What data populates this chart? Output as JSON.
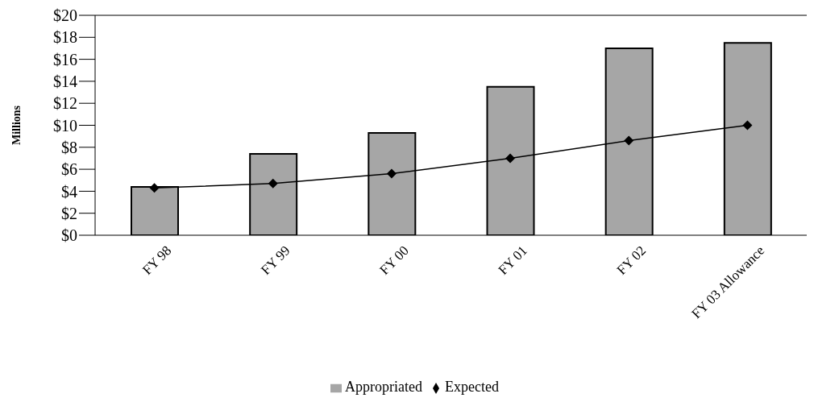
{
  "chart_data": {
    "type": "bar",
    "ylabel": "Millions",
    "categories": [
      "FY 98",
      "FY 99",
      "FY 00",
      "FY 01",
      "FY 02",
      "FY 03 Allowance"
    ],
    "series": [
      {
        "name": "Appropriated",
        "color": "#a6a6a6",
        "values": [
          4.4,
          7.4,
          9.3,
          13.5,
          17.0,
          17.5
        ]
      },
      {
        "name": "Expected",
        "type": "line",
        "color": "#000000",
        "marker": "diamond",
        "values": [
          4.3,
          4.7,
          5.6,
          7.0,
          8.6,
          10.0
        ]
      }
    ],
    "ylim": [
      0,
      20
    ],
    "yticks": [
      {
        "value": 0,
        "label": "$0"
      },
      {
        "value": 2,
        "label": "$2"
      },
      {
        "value": 4,
        "label": "$4"
      },
      {
        "value": 6,
        "label": "$6"
      },
      {
        "value": 8,
        "label": "$8"
      },
      {
        "value": 10,
        "label": "$10"
      },
      {
        "value": 12,
        "label": "$12"
      },
      {
        "value": 14,
        "label": "$14"
      },
      {
        "value": 16,
        "label": "$16"
      },
      {
        "value": 18,
        "label": "$18"
      },
      {
        "value": 20,
        "label": "$20"
      }
    ],
    "grid": false,
    "legend": "bottom"
  }
}
